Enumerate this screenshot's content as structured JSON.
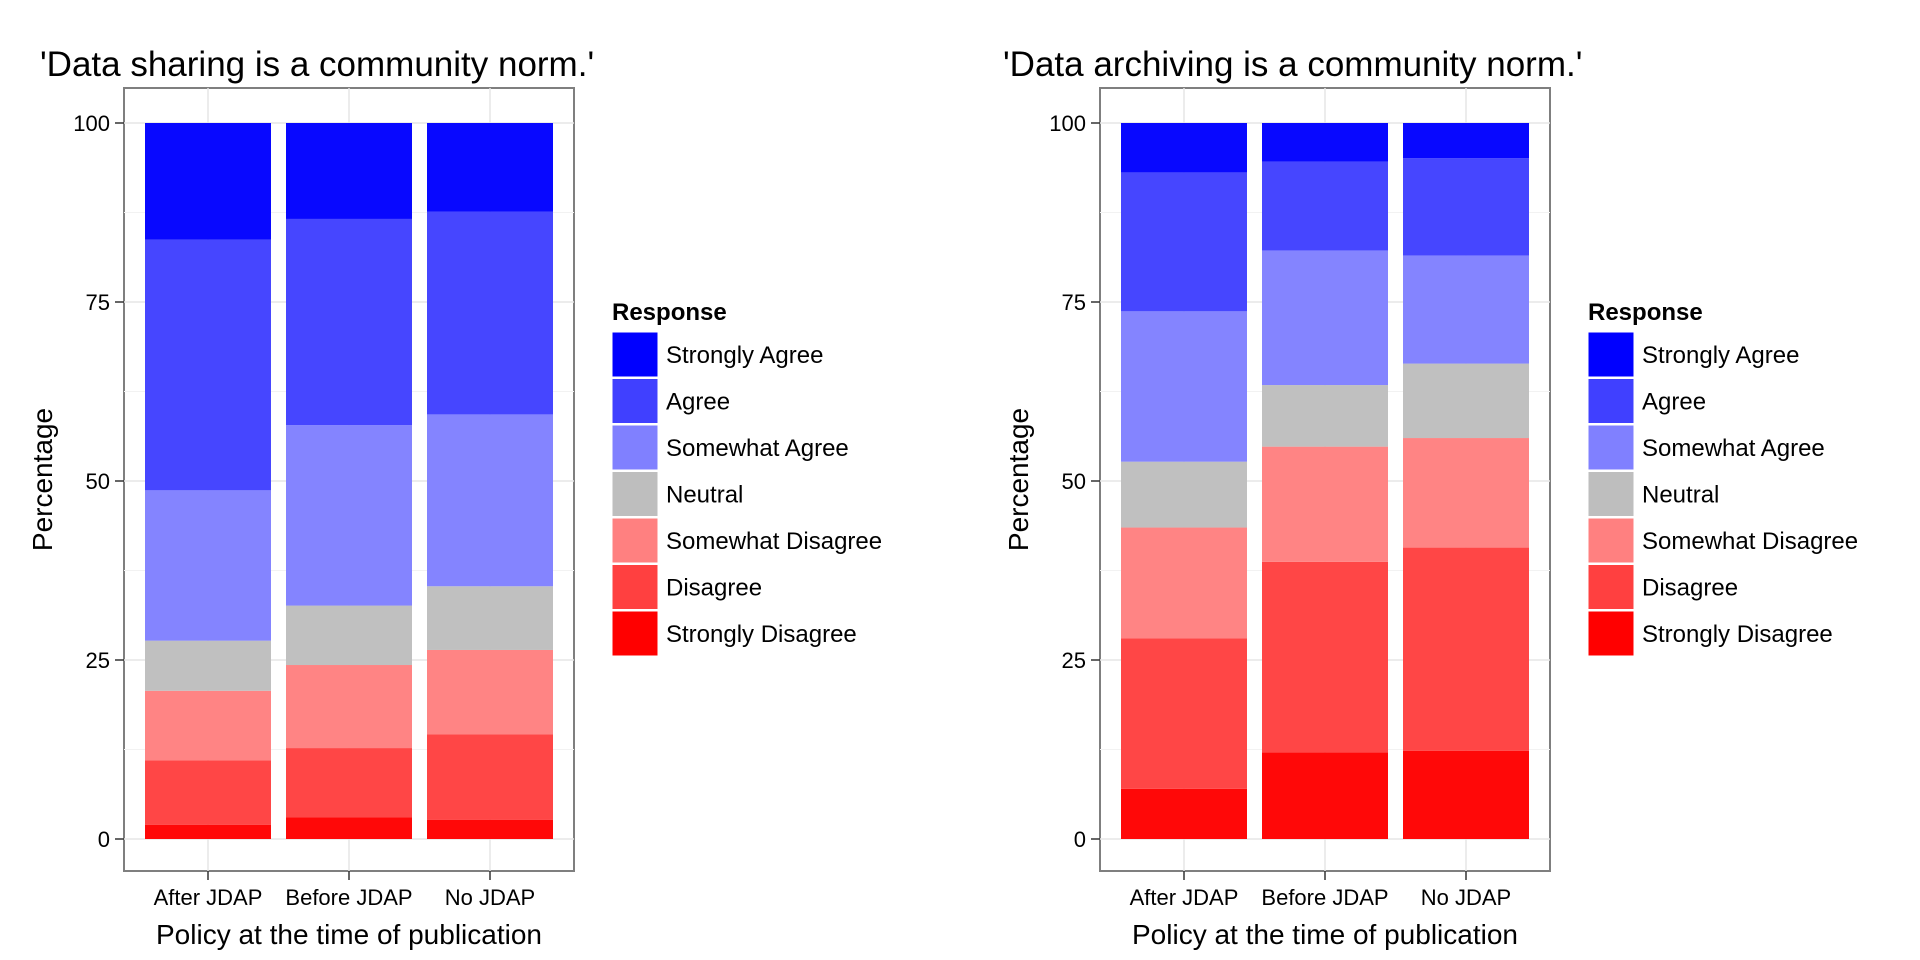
{
  "chart_data": [
    {
      "type": "bar",
      "stacked": true,
      "title": "'Data sharing is a community norm.'",
      "xlabel": "Policy at the time of publication",
      "ylabel": "Percentage",
      "ylim": [
        0,
        100
      ],
      "yticks": [
        0,
        25,
        50,
        75,
        100
      ],
      "grid": true,
      "legend_position": "right",
      "legend_title": "Response",
      "categories": [
        "After JDAP",
        "Before JDAP",
        "No JDAP"
      ],
      "series": [
        {
          "name": "Strongly Disagree",
          "color": "#ff0000",
          "values": [
            2.0,
            3.0,
            2.7
          ]
        },
        {
          "name": "Disagree",
          "color": "#ff4040",
          "values": [
            9.0,
            9.7,
            11.9
          ]
        },
        {
          "name": "Somewhat Disagree",
          "color": "#ff8080",
          "values": [
            9.7,
            11.6,
            11.8
          ]
        },
        {
          "name": "Neutral",
          "color": "#bebebe",
          "values": [
            7.0,
            8.3,
            8.9
          ]
        },
        {
          "name": "Somewhat Agree",
          "color": "#8080ff",
          "values": [
            21.0,
            25.2,
            24.0
          ]
        },
        {
          "name": "Agree",
          "color": "#4040ff",
          "values": [
            35.0,
            28.8,
            28.3
          ]
        },
        {
          "name": "Strongly Agree",
          "color": "#0000ff",
          "values": [
            16.3,
            13.4,
            12.4
          ]
        }
      ]
    },
    {
      "type": "bar",
      "stacked": true,
      "title": "'Data archiving is a community norm.'",
      "xlabel": "Policy at the time of publication",
      "ylabel": "Percentage",
      "ylim": [
        0,
        100
      ],
      "yticks": [
        0,
        25,
        50,
        75,
        100
      ],
      "grid": true,
      "legend_position": "right",
      "legend_title": "Response",
      "categories": [
        "After JDAP",
        "Before JDAP",
        "No JDAP"
      ],
      "series": [
        {
          "name": "Strongly Disagree",
          "color": "#ff0000",
          "values": [
            7.0,
            12.1,
            12.3
          ]
        },
        {
          "name": "Disagree",
          "color": "#ff4040",
          "values": [
            21.0,
            26.6,
            28.4
          ]
        },
        {
          "name": "Somewhat Disagree",
          "color": "#ff8080",
          "values": [
            15.5,
            16.1,
            15.3
          ]
        },
        {
          "name": "Neutral",
          "color": "#bebebe",
          "values": [
            9.2,
            8.6,
            10.4
          ]
        },
        {
          "name": "Somewhat Agree",
          "color": "#8080ff",
          "values": [
            21.0,
            18.8,
            15.1
          ]
        },
        {
          "name": "Agree",
          "color": "#4040ff",
          "values": [
            19.4,
            12.4,
            13.6
          ]
        },
        {
          "name": "Strongly Agree",
          "color": "#0000ff",
          "values": [
            6.9,
            5.4,
            4.9
          ]
        }
      ]
    }
  ],
  "legend_order": [
    "Strongly Agree",
    "Agree",
    "Somewhat Agree",
    "Neutral",
    "Somewhat Disagree",
    "Disagree",
    "Strongly Disagree"
  ]
}
